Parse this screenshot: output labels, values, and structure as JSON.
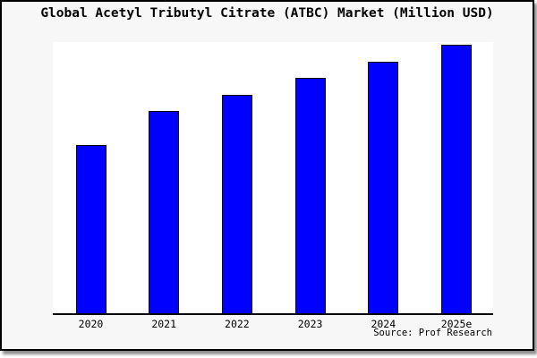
{
  "window": {
    "background_color": "#f7f7f7",
    "frame_border_color": "#000000"
  },
  "title": "Global Acetyl Tributyl Citrate (ATBC) Market (Million USD)",
  "source": "Source: Prof Research",
  "chart_data": {
    "type": "bar",
    "title": "Global Acetyl Tributyl Citrate (ATBC) Market (Million USD)",
    "categories": [
      "2020",
      "2021",
      "2022",
      "2023",
      "2024",
      "2025e"
    ],
    "values": [
      188,
      226,
      244,
      263,
      281,
      300
    ],
    "units": "relative height (no y-axis scale shown in chart)",
    "xlabel": "",
    "ylabel": "",
    "ylim": [
      0,
      303
    ],
    "grid": false,
    "legend": false,
    "bar_color": "#0000ff",
    "bar_edge_color": "#000000",
    "plot_background": "#ffffff",
    "source_note": "Source: Prof Research"
  }
}
